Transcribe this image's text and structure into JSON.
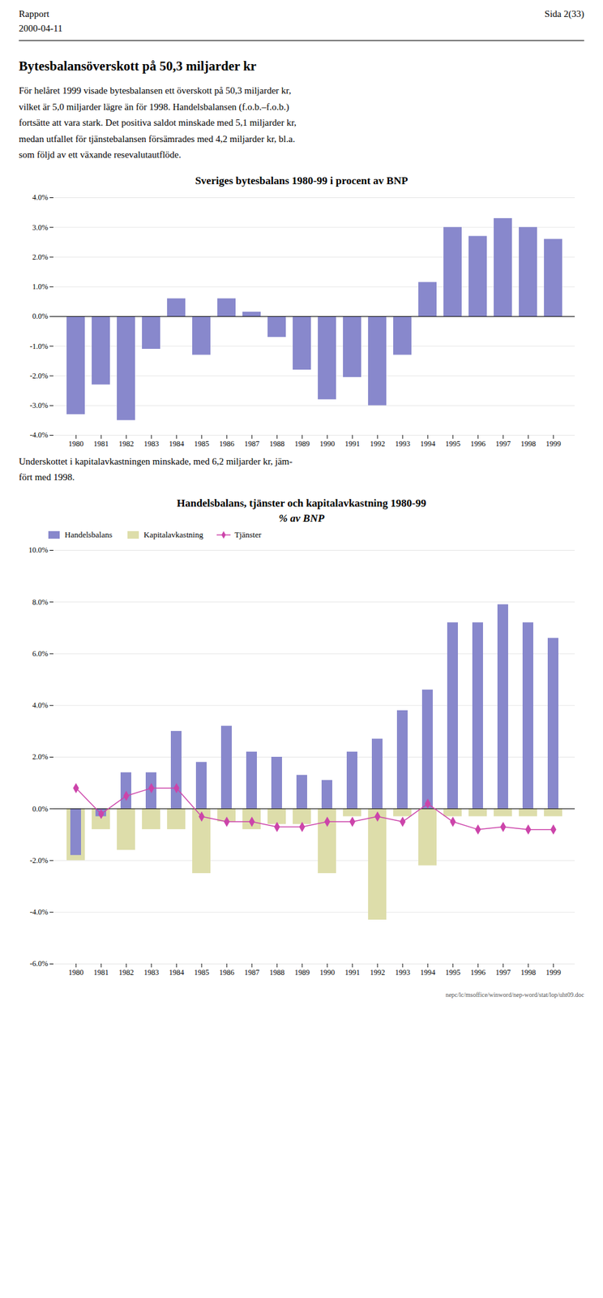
{
  "page": {
    "header_left": [
      "Rapport",
      "2000-04-11"
    ],
    "header_right": "Sida 2(33)",
    "title": "Bytesbalansöverskott på 50,3 miljarder kr",
    "text": [
      "För helåret 1999 visade bytesbalansen ett överskott på 50,3 miljarder kr,\nvilket är 5,0 miljarder lägre än för 1998. Handelsbalansen (f.o.b.–f.o.b.)\nfortsätte att vara stark. Det positiva saldot minskade med 5,1 miljarder kr,\nmedan utfallet för tjänstebalansen försämrades med 4,2 miljarder kr, bl.a.\nsom följd av ett växande resevalutautflöde.",
      "Underskottet i kapitalavkastningen minskade, med 6,2 miljarder kr, jäm-\nfört med 1998."
    ],
    "footer": "nepc/lc/msoffice/winword/nep-word/stat/lop/uht09.doc"
  },
  "chart_data": [
    {
      "type": "bar",
      "title": "Sveriges bytesbalans 1980-99 i procent av BNP",
      "categories": [
        "1980",
        "1981",
        "1982",
        "1983",
        "1984",
        "1985",
        "1986",
        "1987",
        "1988",
        "1989",
        "1990",
        "1991",
        "1992",
        "1993",
        "1994",
        "1995",
        "1996",
        "1997",
        "1998",
        "1999"
      ],
      "values": [
        -3.3,
        -2.3,
        -3.5,
        -1.1,
        0.6,
        -1.3,
        0.6,
        0.15,
        -0.7,
        -1.8,
        -2.8,
        -2.05,
        -3.0,
        -1.3,
        1.15,
        3.0,
        2.7,
        3.3,
        3.0,
        2.6
      ],
      "color": "#8888CC",
      "ylim": [
        -4.0,
        4.0
      ],
      "yticks": [
        {
          "value": -4.0,
          "label": "-4.0%"
        },
        {
          "value": -3.0,
          "label": "-3.0%"
        },
        {
          "value": -2.0,
          "label": "-2.0%"
        },
        {
          "value": -1.0,
          "label": "-1.0%"
        },
        {
          "value": 0.0,
          "label": "0.0%"
        },
        {
          "value": 1.0,
          "label": "1.0%"
        },
        {
          "value": 2.0,
          "label": "2.0%"
        },
        {
          "value": 3.0,
          "label": "3.0%"
        },
        {
          "value": 4.0,
          "label": "4.0%"
        }
      ],
      "grid": true
    },
    {
      "type": "bar",
      "title": "Handelsbalans, tjänster och kapitalavkastning 1980-99",
      "subtitle": "% av BNP",
      "categories": [
        "1980",
        "1981",
        "1982",
        "1983",
        "1984",
        "1985",
        "1986",
        "1987",
        "1988",
        "1989",
        "1990",
        "1991",
        "1992",
        "1993",
        "1994",
        "1995",
        "1996",
        "1997",
        "1998",
        "1999"
      ],
      "series": [
        {
          "name": "Handelsbalans",
          "type": "bar",
          "color": "#8888CC",
          "values": [
            -1.8,
            -0.3,
            1.4,
            1.4,
            3.0,
            1.8,
            3.2,
            2.2,
            2.0,
            1.3,
            1.1,
            2.2,
            2.7,
            3.8,
            4.6,
            7.2,
            7.2,
            7.9,
            7.2,
            6.6
          ]
        },
        {
          "name": "Kapitalavkastning",
          "type": "bar",
          "color": "#DDDDAA",
          "values": [
            -2.0,
            -0.8,
            -1.6,
            -0.8,
            -0.8,
            -2.5,
            -0.5,
            -0.8,
            -0.6,
            -0.6,
            -2.5,
            -0.3,
            -4.3,
            -0.3,
            -2.2,
            -0.3,
            -0.3,
            -0.3,
            -0.3,
            -0.3
          ]
        },
        {
          "name": "Tjänster",
          "type": "line",
          "color": "#CC44AA",
          "marker": "diamond",
          "values": [
            0.8,
            -0.2,
            0.5,
            0.8,
            0.8,
            -0.3,
            -0.5,
            -0.5,
            -0.7,
            -0.7,
            -0.5,
            -0.5,
            -0.3,
            -0.5,
            0.2,
            -0.5,
            -0.8,
            -0.7,
            -0.8,
            -0.8
          ]
        }
      ],
      "ylim": [
        -6.0,
        10.0
      ],
      "yticks": [
        {
          "value": -6.0,
          "label": "-6.0%"
        },
        {
          "value": -4.0,
          "label": "-4.0%"
        },
        {
          "value": -2.0,
          "label": "-2.0%"
        },
        {
          "value": 0.0,
          "label": "0.0%"
        },
        {
          "value": 2.0,
          "label": "2.0%"
        },
        {
          "value": 4.0,
          "label": "4.0%"
        },
        {
          "value": 6.0,
          "label": "6.0%"
        },
        {
          "value": 8.0,
          "label": "8.0%"
        },
        {
          "value": 10.0,
          "label": "10.0%"
        }
      ],
      "grid": true,
      "legend": "top"
    }
  ]
}
